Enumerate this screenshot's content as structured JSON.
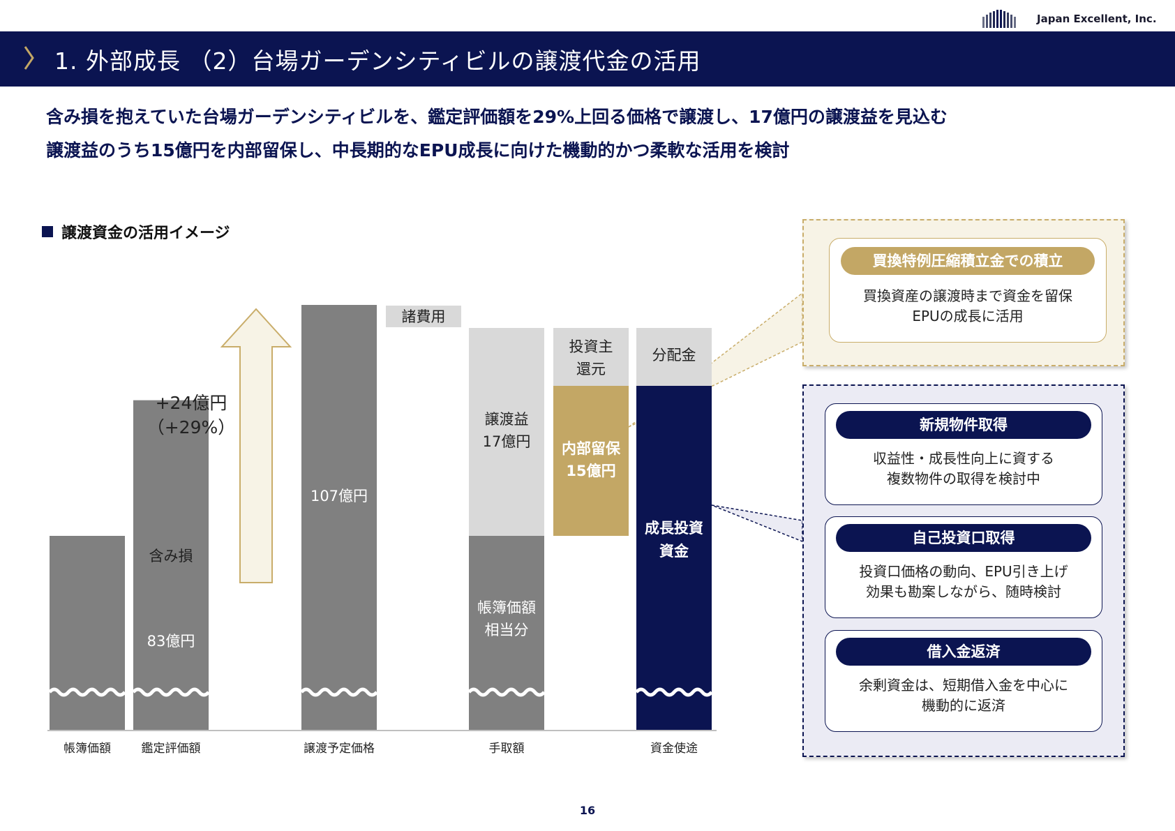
{
  "header": {
    "company": "Japan Excellent, Inc.",
    "title": "1. 外部成長 （2）台場ガーデンシティビルの譲渡代金の活用"
  },
  "headline": {
    "line1": "含み損を抱えていた台場ガーデンシティビルを、鑑定評価額を29%上回る価格で譲渡し、17億円の譲渡益を見込む",
    "line2": "譲渡益のうち15億円を内部留保し、中長期的なEPU成長に向けた機動的かつ柔軟な活用を検討"
  },
  "section_title": "譲渡資金の活用イメージ",
  "chart_data": {
    "type": "bar",
    "categories": [
      "帳簿価額",
      "鑑定評価額",
      "譲渡予定価格",
      "手取額",
      "資金使途"
    ],
    "bar_labels": {
      "appraisal_value": "83億円",
      "unrealized_loss": "含み損",
      "sale_price": "107億円",
      "expenses": "諸費用",
      "book_value_portion": [
        "帳簿価額",
        "相当分"
      ],
      "gain_on_sale": [
        "譲渡益",
        "17億円"
      ],
      "internal_reserve": [
        "内部留保",
        "15億円"
      ],
      "unitholder_return": [
        "投資主",
        "還元"
      ],
      "distribution": "分配金",
      "growth_investment": [
        "成長投資",
        "資金"
      ]
    },
    "increase_label": [
      "+24億円",
      "（+29%）"
    ],
    "values_oku_yen": {
      "appraisal_value": 83,
      "sale_price": 107,
      "gain_on_sale": 17,
      "internal_reserve": 15,
      "increase": 24,
      "increase_pct": 29
    },
    "colors": {
      "gray_dark": "#808080",
      "gray_light": "#d9d9d9",
      "gold": "#c3a765",
      "navy": "#0b1451",
      "arrow_fill": "#f7f3e6",
      "arrow_stroke": "#c9ad6a"
    }
  },
  "callouts": {
    "reserve": {
      "title": "買換特例圧縮積立金での積立",
      "lines": [
        "買換資産の譲渡時まで資金を留保",
        "EPUの成長に活用"
      ]
    },
    "uses": [
      {
        "title": "新規物件取得",
        "lines": [
          "収益性・成長性向上に資する",
          "複数物件の取得を検討中"
        ]
      },
      {
        "title": "自己投資口取得",
        "lines": [
          "投資口価格の動向、EPU引き上げ",
          "効果も勘案しながら、随時検討"
        ]
      },
      {
        "title": "借入金返済",
        "lines": [
          "余剰資金は、短期借入金を中心に",
          "機動的に返済"
        ]
      }
    ]
  },
  "page_number": "16"
}
